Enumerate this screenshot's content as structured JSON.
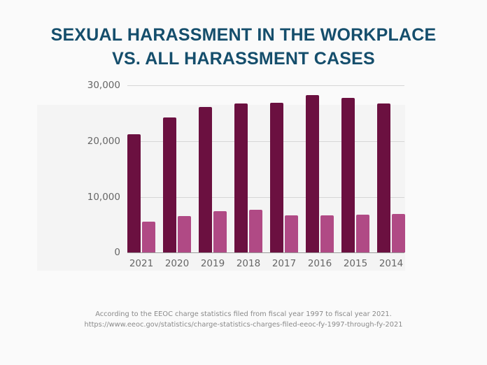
{
  "title_line1": "SEXUAL HARASSMENT IN THE WORKPLACE",
  "title_line2": "VS. ALL HARASSMENT CASES",
  "source_line1": "According to the EEOC charge statistics filed from fiscal year 1997 to fiscal year 2021.",
  "source_line2": "https://www.eeoc.gov/statistics/charge-statistics-charges-filed-eeoc-fy-1997-through-fy-2021",
  "colors": {
    "title": "#154e6c",
    "all_harassment": "#6b1040",
    "sexual_harassment": "#b04a85"
  },
  "yticks": [
    "30,000",
    "20,000",
    "10,000",
    "0"
  ],
  "chart_data": {
    "type": "bar",
    "title": "SEXUAL HARASSMENT IN THE WORKPLACE VS. ALL HARASSMENT CASES",
    "xlabel": "",
    "ylabel": "",
    "ylim": [
      0,
      30000
    ],
    "yticks": [
      0,
      10000,
      20000,
      30000
    ],
    "grid": true,
    "legend": "none",
    "categories": [
      "2021",
      "2020",
      "2019",
      "2018",
      "2017",
      "2016",
      "2015",
      "2014"
    ],
    "series": [
      {
        "name": "All harassment charges",
        "color": "#6b1040",
        "values": [
          21200,
          24200,
          26100,
          26700,
          26900,
          28200,
          27800,
          26700
        ]
      },
      {
        "name": "Sexual harassment charges",
        "color": "#b04a85",
        "values": [
          5500,
          6500,
          7400,
          7600,
          6700,
          6700,
          6800,
          6900
        ]
      }
    ]
  }
}
